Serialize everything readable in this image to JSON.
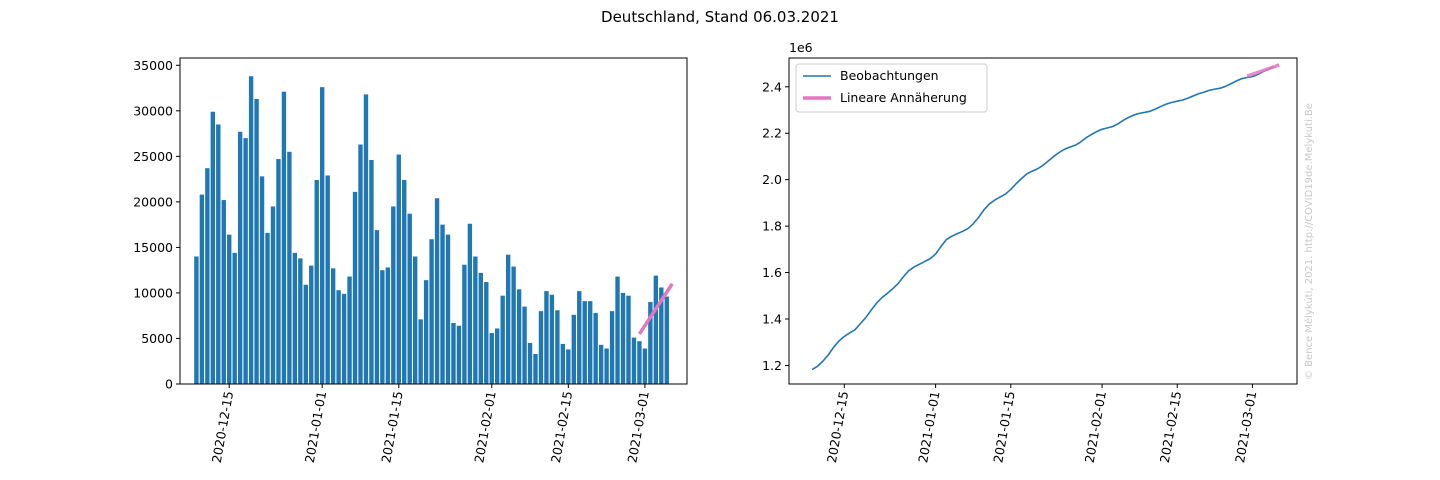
{
  "figure": {
    "title": "Deutschland, Stand 06.03.2021",
    "watermark": "© Bence Mélykúti, 2021. http://COVID19de.Melykuti.Be"
  },
  "colors": {
    "bar": "#1f77b4",
    "line": "#1f77b4",
    "fit": "#e377c2"
  },
  "chart_data": [
    {
      "type": "bar",
      "x_start": "2020-12-09",
      "dates_note": "one bar per day from 2020-12-09 to 2021-03-06",
      "values": [
        14000,
        20800,
        23700,
        29900,
        28500,
        20200,
        16400,
        14400,
        27700,
        27000,
        33800,
        31300,
        22800,
        16600,
        19500,
        24700,
        32100,
        25500,
        14400,
        13800,
        10900,
        13000,
        22400,
        32600,
        22900,
        12700,
        10300,
        9900,
        11800,
        21100,
        26300,
        31800,
        24600,
        16900,
        12500,
        12800,
        19500,
        25200,
        22400,
        18700,
        14000,
        7100,
        11400,
        15900,
        20400,
        17500,
        16400,
        6700,
        6400,
        13100,
        17600,
        14000,
        12200,
        11200,
        5600,
        6100,
        9700,
        14200,
        12900,
        10400,
        8500,
        4500,
        3300,
        8000,
        10200,
        9800,
        8100,
        4400,
        3800,
        7600,
        10200,
        9100,
        9100,
        7800,
        4300,
        3900,
        8000,
        11800,
        10000,
        9700,
        5100,
        4700,
        3900,
        9000,
        11900,
        10600,
        9600
      ],
      "fit": {
        "name": "Lineare Annäherung",
        "x": [
          "2021-02-28",
          "2021-03-06"
        ],
        "y": [
          5500,
          11000
        ]
      },
      "ylim": [
        0,
        35800
      ],
      "yticks": [
        0,
        5000,
        10000,
        15000,
        20000,
        25000,
        30000,
        35000
      ],
      "xticks": [
        "2020-12-15",
        "2021-01-01",
        "2021-01-15",
        "2021-02-01",
        "2021-02-15",
        "2021-03-01"
      ],
      "title": "",
      "xlabel": "",
      "ylabel": ""
    },
    {
      "type": "line",
      "x_start": "2020-12-09",
      "series": [
        {
          "name": "Beobachtungen",
          "values": [
            1.182,
            1.196,
            1.218,
            1.245,
            1.278,
            1.305,
            1.325,
            1.34,
            1.354,
            1.38,
            1.406,
            1.438,
            1.468,
            1.492,
            1.51,
            1.53,
            1.552,
            1.582,
            1.608,
            1.624,
            1.636,
            1.648,
            1.66,
            1.68,
            1.712,
            1.742,
            1.756,
            1.767,
            1.777,
            1.789,
            1.81,
            1.837,
            1.87,
            1.895,
            1.912,
            1.925,
            1.938,
            1.958,
            1.983,
            2.005,
            2.025,
            2.037,
            2.047,
            2.062,
            2.081,
            2.1,
            2.117,
            2.131,
            2.14,
            2.148,
            2.162,
            2.18,
            2.194,
            2.207,
            2.217,
            2.223,
            2.229,
            2.241,
            2.256,
            2.269,
            2.279,
            2.286,
            2.29,
            2.295,
            2.305,
            2.316,
            2.326,
            2.333,
            2.338,
            2.343,
            2.351,
            2.361,
            2.37,
            2.377,
            2.385,
            2.39,
            2.394,
            2.402,
            2.413,
            2.425,
            2.435,
            2.44,
            2.444,
            2.453,
            2.465,
            2.476,
            2.487
          ]
        }
      ],
      "fit": {
        "name": "Lineare Annäherung",
        "x": [
          "2021-02-28",
          "2021-03-06"
        ],
        "y": [
          2.446,
          2.494
        ]
      },
      "ylim": [
        1.12,
        2.524
      ],
      "yticks": [
        1.2,
        1.4,
        1.6,
        1.8,
        2.0,
        2.2,
        2.4
      ],
      "ytick_labels": [
        "1.2",
        "1.4",
        "1.6",
        "1.8",
        "2.0",
        "2.2",
        "2.4"
      ],
      "y_offset_label": "1e6",
      "xticks": [
        "2020-12-15",
        "2021-01-01",
        "2021-01-15",
        "2021-02-01",
        "2021-02-15",
        "2021-03-01"
      ],
      "legend": {
        "placement": "top-left",
        "entries": [
          "Beobachtungen",
          "Lineare Annäherung"
        ]
      },
      "title": "",
      "xlabel": "",
      "ylabel": ""
    }
  ]
}
